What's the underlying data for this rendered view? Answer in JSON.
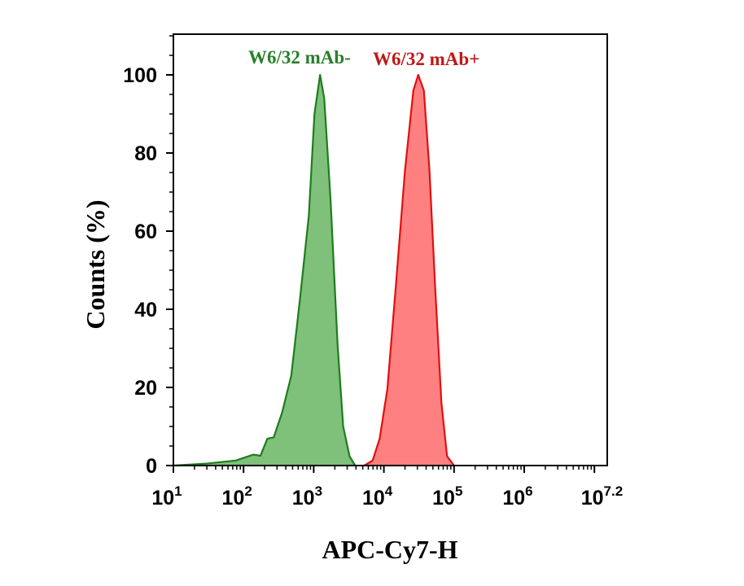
{
  "chart_data": {
    "type": "area",
    "title": "",
    "xlabel": "APC-Cy7-H",
    "ylabel": "Counts (%)",
    "xscale": "log10",
    "xlim_log10": [
      1,
      7.2
    ],
    "ylim": [
      0,
      100
    ],
    "x_ticks": [
      {
        "base": "10",
        "exp": "1",
        "log10": 1
      },
      {
        "base": "10",
        "exp": "2",
        "log10": 2
      },
      {
        "base": "10",
        "exp": "3",
        "log10": 3
      },
      {
        "base": "10",
        "exp": "4",
        "log10": 4
      },
      {
        "base": "10",
        "exp": "5",
        "log10": 5
      },
      {
        "base": "10",
        "exp": "6",
        "log10": 6
      },
      {
        "base": "10",
        "exp": "7.2",
        "log10": 7.2
      }
    ],
    "y_ticks": [
      0,
      20,
      40,
      60,
      80,
      100
    ],
    "grid": false,
    "series": [
      {
        "name": "W6/32 mAb-",
        "stroke": "#1e7d1e",
        "fill": "#7fc07a",
        "label_color": "#2a7f2a",
        "x_log10": [
          1.0,
          1.47,
          1.89,
          2.14,
          2.24,
          2.34,
          2.43,
          2.55,
          2.68,
          2.8,
          2.93,
          3.01,
          3.09,
          3.15,
          3.24,
          3.34,
          3.42,
          3.51,
          3.59
        ],
        "y": [
          0,
          0.5,
          1.3,
          2.8,
          2.5,
          6.9,
          7.2,
          13.6,
          23,
          42,
          64,
          90,
          100,
          94,
          68,
          31,
          10,
          2.4,
          0
        ]
      },
      {
        "name": "W6/32 mAb+",
        "stroke": "#e01010",
        "fill": "#ff8080",
        "label_color": "#c01818",
        "x_log10": [
          3.72,
          3.84,
          3.94,
          4.05,
          4.17,
          4.3,
          4.42,
          4.49,
          4.57,
          4.65,
          4.73,
          4.82,
          4.9,
          5.0
        ],
        "y": [
          0,
          1.3,
          6.9,
          19.6,
          46,
          75.5,
          96,
          100,
          96,
          75.5,
          46,
          16,
          2.4,
          0
        ]
      }
    ]
  }
}
